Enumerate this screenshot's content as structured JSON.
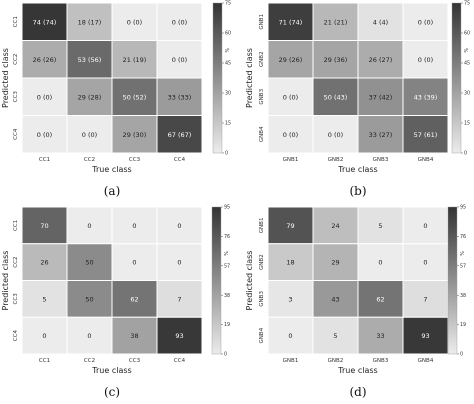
{
  "chart_data": [
    {
      "type": "heatmap",
      "panel_label": "(a)",
      "xlabel": "True class",
      "ylabel": "Predicted class",
      "x_categories": [
        "CC1",
        "CC2",
        "CC3",
        "CC4"
      ],
      "y_categories": [
        "CC1",
        "CC2",
        "CC3",
        "CC4"
      ],
      "values": [
        [
          74,
          18,
          0,
          0
        ],
        [
          26,
          53,
          21,
          0
        ],
        [
          0,
          29,
          50,
          33
        ],
        [
          0,
          0,
          29,
          67
        ]
      ],
      "labels": [
        [
          "74 (74)",
          "18 (17)",
          "0 (0)",
          "0 (0)"
        ],
        [
          "26 (26)",
          "53 (56)",
          "21 (19)",
          "0 (0)"
        ],
        [
          "0 (0)",
          "29 (28)",
          "50 (52)",
          "33 (33)"
        ],
        [
          "0 (0)",
          "0 (0)",
          "29 (30)",
          "67 (67)"
        ]
      ],
      "colorbar": {
        "max": 75,
        "ticks": [
          "75",
          "60",
          "45",
          "30",
          "15",
          "0"
        ],
        "unit": "%"
      }
    },
    {
      "type": "heatmap",
      "panel_label": "(b)",
      "xlabel": "True class",
      "ylabel": "Predicted class",
      "x_categories": [
        "GNB1",
        "GNB2",
        "GNB3",
        "GNB4"
      ],
      "y_categories": [
        "GNB1",
        "GNB2",
        "GNB3",
        "GNB4"
      ],
      "values": [
        [
          71,
          21,
          4,
          0
        ],
        [
          29,
          29,
          26,
          0
        ],
        [
          0,
          50,
          37,
          43
        ],
        [
          0,
          0,
          33,
          57
        ]
      ],
      "labels": [
        [
          "71 (74)",
          "21 (21)",
          "4 (4)",
          "0 (0)"
        ],
        [
          "29 (26)",
          "29 (36)",
          "26 (27)",
          "0 (0)"
        ],
        [
          "0 (0)",
          "50 (43)",
          "37 (42)",
          "43 (39)"
        ],
        [
          "0 (0)",
          "0 (0)",
          "33 (27)",
          "57 (61)"
        ]
      ],
      "colorbar": {
        "max": 75,
        "ticks": [
          "75",
          "60",
          "45",
          "30",
          "15",
          "0"
        ],
        "unit": "%"
      }
    },
    {
      "type": "heatmap",
      "panel_label": "(c)",
      "xlabel": "True class",
      "ylabel": "Predicted class",
      "x_categories": [
        "CC1",
        "CC2",
        "CC3",
        "CC4"
      ],
      "y_categories": [
        "CC1",
        "CC2",
        "CC3",
        "CC4"
      ],
      "values": [
        [
          70,
          0,
          0,
          0
        ],
        [
          26,
          50,
          0,
          0
        ],
        [
          5,
          50,
          62,
          7
        ],
        [
          0,
          0,
          38,
          93
        ]
      ],
      "labels": [
        [
          "70",
          "0",
          "0",
          "0"
        ],
        [
          "26",
          "50",
          "0",
          "0"
        ],
        [
          "5",
          "50",
          "62",
          "7"
        ],
        [
          "0",
          "0",
          "38",
          "93"
        ]
      ],
      "colorbar": {
        "max": 95,
        "ticks": [
          "95",
          "76",
          "57",
          "38",
          "19",
          "0"
        ],
        "unit": "%"
      }
    },
    {
      "type": "heatmap",
      "panel_label": "(d)",
      "xlabel": "True class",
      "ylabel": "Predicted class",
      "x_categories": [
        "GNB1",
        "GNB2",
        "GNB3",
        "GNB4"
      ],
      "y_categories": [
        "GNB1",
        "GNB2",
        "GNB3",
        "GNB4"
      ],
      "values": [
        [
          79,
          24,
          5,
          0
        ],
        [
          18,
          29,
          0,
          0
        ],
        [
          3,
          43,
          62,
          7
        ],
        [
          0,
          5,
          33,
          93
        ]
      ],
      "labels": [
        [
          "79",
          "24",
          "5",
          "0"
        ],
        [
          "18",
          "29",
          "0",
          "0"
        ],
        [
          "3",
          "43",
          "62",
          "7"
        ],
        [
          "0",
          "5",
          "33",
          "93"
        ]
      ],
      "colorbar": {
        "max": 95,
        "ticks": [
          "95",
          "76",
          "57",
          "38",
          "19",
          "0"
        ],
        "unit": "%"
      }
    }
  ]
}
